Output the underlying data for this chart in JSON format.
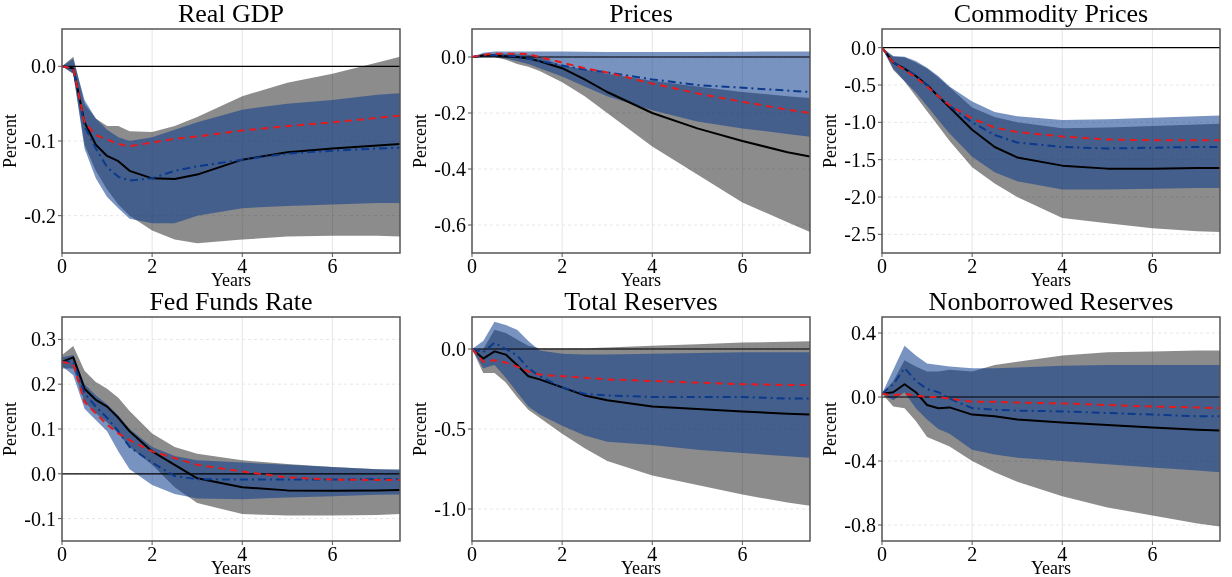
{
  "chart_data": [
    {
      "type": "line",
      "title": "Real GDP",
      "xlabel": "Years",
      "ylabel": "Percent",
      "x": [
        0,
        0.25,
        0.5,
        0.75,
        1,
        1.25,
        1.5,
        2,
        2.5,
        3,
        4,
        5,
        6,
        7,
        7.5
      ],
      "xlim": [
        0,
        7.5
      ],
      "xticks": [
        0,
        2,
        4,
        6
      ],
      "ylim": [
        -0.25,
        0.05
      ],
      "yticks": [
        {
          "value": -0.2,
          "label": "-0.2"
        },
        {
          "value": -0.1,
          "label": "-0.1"
        },
        {
          "value": 0,
          "label": "0.0"
        }
      ],
      "grid": true,
      "ref_lines": [
        {
          "axis": "y",
          "value": 0,
          "color": "#000000"
        }
      ],
      "series": [
        {
          "color": "#000000",
          "line_style": "solid",
          "values": [
            0,
            -0.003,
            -0.075,
            -0.105,
            -0.12,
            -0.127,
            -0.14,
            -0.15,
            -0.151,
            -0.145,
            -0.125,
            -0.115,
            -0.11,
            -0.106,
            -0.104
          ],
          "lower": [
            0,
            -0.01,
            -0.105,
            -0.14,
            -0.165,
            -0.185,
            -0.2,
            -0.22,
            -0.232,
            -0.237,
            -0.232,
            -0.228,
            -0.227,
            -0.227,
            -0.228
          ],
          "upper": [
            0,
            0.013,
            -0.05,
            -0.07,
            -0.08,
            -0.08,
            -0.087,
            -0.088,
            -0.08,
            -0.068,
            -0.04,
            -0.022,
            -0.01,
            0.005,
            0.013
          ]
        },
        {
          "color": "#0b3a8c",
          "line_style": "dashdot",
          "values": [
            0,
            -0.003,
            -0.08,
            -0.11,
            -0.135,
            -0.148,
            -0.153,
            -0.15,
            -0.14,
            -0.134,
            -0.125,
            -0.117,
            -0.113,
            -0.11,
            -0.109
          ],
          "lower": [
            0,
            -0.01,
            -0.11,
            -0.15,
            -0.175,
            -0.19,
            -0.204,
            -0.21,
            -0.21,
            -0.2,
            -0.19,
            -0.187,
            -0.185,
            -0.183,
            -0.183
          ],
          "upper": [
            0,
            0.01,
            -0.045,
            -0.07,
            -0.085,
            -0.095,
            -0.1,
            -0.095,
            -0.085,
            -0.075,
            -0.058,
            -0.05,
            -0.045,
            -0.038,
            -0.036
          ]
        },
        {
          "color": "#e41a1c",
          "line_style": "dashed",
          "values": [
            0,
            -0.003,
            -0.075,
            -0.092,
            -0.098,
            -0.104,
            -0.107,
            -0.102,
            -0.097,
            -0.094,
            -0.086,
            -0.08,
            -0.075,
            -0.069,
            -0.066
          ]
        }
      ]
    },
    {
      "type": "line",
      "title": "Prices",
      "xlabel": "Years",
      "ylabel": "Percent",
      "x": [
        0,
        0.25,
        0.5,
        0.75,
        1,
        1.25,
        1.5,
        2,
        2.5,
        3,
        4,
        5,
        6,
        7,
        7.5
      ],
      "xlim": [
        0,
        7.5
      ],
      "xticks": [
        0,
        2,
        4,
        6
      ],
      "ylim": [
        -0.7,
        0.1
      ],
      "yticks": [
        {
          "value": -0.6,
          "label": "-0.6"
        },
        {
          "value": -0.4,
          "label": "-0.4"
        },
        {
          "value": -0.2,
          "label": "-0.2"
        },
        {
          "value": 0,
          "label": "0.0"
        }
      ],
      "grid": true,
      "ref_lines": [
        {
          "axis": "y",
          "value": 0,
          "color": "#000000"
        }
      ],
      "series": [
        {
          "color": "#000000",
          "line_style": "solid",
          "values": [
            0,
            0.005,
            0.005,
            0.003,
            0,
            -0.005,
            -0.015,
            -0.04,
            -0.08,
            -0.125,
            -0.2,
            -0.255,
            -0.3,
            -0.34,
            -0.355
          ],
          "lower": [
            0,
            0,
            0,
            -0.01,
            -0.025,
            -0.035,
            -0.05,
            -0.09,
            -0.14,
            -0.2,
            -0.32,
            -0.42,
            -0.52,
            -0.59,
            -0.625
          ],
          "upper": [
            0,
            0.01,
            0.012,
            0.012,
            0.01,
            0.008,
            0,
            -0.03,
            -0.045,
            -0.06,
            -0.085,
            -0.105,
            -0.125,
            -0.14,
            -0.146
          ]
        },
        {
          "color": "#0b3a8c",
          "line_style": "dashdot",
          "values": [
            0,
            0.005,
            0.007,
            0.005,
            0.002,
            -0.005,
            -0.015,
            -0.03,
            -0.045,
            -0.055,
            -0.08,
            -0.1,
            -0.11,
            -0.12,
            -0.125
          ],
          "lower": [
            0,
            0,
            0,
            -0.005,
            -0.015,
            -0.025,
            -0.04,
            -0.07,
            -0.105,
            -0.14,
            -0.19,
            -0.23,
            -0.255,
            -0.275,
            -0.285
          ],
          "upper": [
            0,
            0.015,
            0.02,
            0.02,
            0.02,
            0.02,
            0.02,
            0.02,
            0.019,
            0.018,
            0.018,
            0.018,
            0.019,
            0.02,
            0.02
          ]
        },
        {
          "color": "#e41a1c",
          "line_style": "dashed",
          "values": [
            0,
            0.008,
            0.012,
            0.012,
            0.012,
            0.01,
            0,
            -0.02,
            -0.04,
            -0.055,
            -0.095,
            -0.13,
            -0.16,
            -0.188,
            -0.2
          ]
        }
      ]
    },
    {
      "type": "line",
      "title": "Commodity Prices",
      "xlabel": "Years",
      "ylabel": "Percent",
      "x": [
        0,
        0.25,
        0.5,
        0.75,
        1,
        1.25,
        1.5,
        2,
        2.5,
        3,
        4,
        5,
        6,
        7,
        7.5
      ],
      "xlim": [
        0,
        7.5
      ],
      "xticks": [
        0,
        2,
        4,
        6
      ],
      "ylim": [
        -2.75,
        0.25
      ],
      "yticks": [
        {
          "value": -2.5,
          "label": "-2.5"
        },
        {
          "value": -2,
          "label": "-2.0"
        },
        {
          "value": -1.5,
          "label": "-1.5"
        },
        {
          "value": -1,
          "label": "-1.0"
        },
        {
          "value": -0.5,
          "label": "-0.5"
        },
        {
          "value": 0,
          "label": "0.0"
        }
      ],
      "grid": true,
      "ref_lines": [
        {
          "axis": "y",
          "value": 0,
          "color": "#000000"
        }
      ],
      "series": [
        {
          "color": "#000000",
          "line_style": "solid",
          "values": [
            0,
            -0.2,
            -0.28,
            -0.38,
            -0.5,
            -0.65,
            -0.8,
            -1.1,
            -1.33,
            -1.47,
            -1.58,
            -1.62,
            -1.62,
            -1.61,
            -1.61
          ],
          "lower": [
            0,
            -0.3,
            -0.45,
            -0.65,
            -0.85,
            -1.05,
            -1.25,
            -1.6,
            -1.82,
            -2,
            -2.28,
            -2.35,
            -2.42,
            -2.46,
            -2.47
          ],
          "upper": [
            0,
            -0.12,
            -0.13,
            -0.2,
            -0.28,
            -0.4,
            -0.53,
            -0.8,
            -0.93,
            -1,
            -1.08,
            -1.07,
            -1.05,
            -1.03,
            -1.02
          ]
        },
        {
          "color": "#0b3a8c",
          "line_style": "dashdot",
          "values": [
            0,
            -0.2,
            -0.28,
            -0.37,
            -0.5,
            -0.65,
            -0.78,
            -1,
            -1.17,
            -1.27,
            -1.33,
            -1.35,
            -1.34,
            -1.33,
            -1.33
          ],
          "lower": [
            0,
            -0.28,
            -0.45,
            -0.6,
            -0.78,
            -0.97,
            -1.15,
            -1.46,
            -1.67,
            -1.79,
            -1.9,
            -1.9,
            -1.89,
            -1.88,
            -1.88
          ],
          "upper": [
            0,
            -0.11,
            -0.12,
            -0.18,
            -0.27,
            -0.38,
            -0.52,
            -0.72,
            -0.86,
            -0.92,
            -0.97,
            -0.96,
            -0.94,
            -0.92,
            -0.91
          ]
        },
        {
          "color": "#e41a1c",
          "line_style": "dashed",
          "values": [
            0,
            -0.2,
            -0.3,
            -0.4,
            -0.52,
            -0.65,
            -0.77,
            -0.95,
            -1.07,
            -1.13,
            -1.19,
            -1.23,
            -1.24,
            -1.24,
            -1.24
          ]
        }
      ]
    },
    {
      "type": "line",
      "title": "Fed Funds Rate",
      "xlabel": "Years",
      "ylabel": "Percent",
      "x": [
        0,
        0.25,
        0.5,
        0.75,
        1,
        1.25,
        1.5,
        2,
        2.5,
        3,
        4,
        5,
        6,
        7,
        7.5
      ],
      "xlim": [
        0,
        7.5
      ],
      "xticks": [
        0,
        2,
        4,
        6
      ],
      "ylim": [
        -0.15,
        0.35
      ],
      "yticks": [
        {
          "value": -0.1,
          "label": "-0.1"
        },
        {
          "value": 0,
          "label": "0.0"
        },
        {
          "value": 0.1,
          "label": "0.1"
        },
        {
          "value": 0.2,
          "label": "0.2"
        },
        {
          "value": 0.3,
          "label": "0.3"
        }
      ],
      "grid": true,
      "ref_lines": [
        {
          "axis": "y",
          "value": 0,
          "color": "#000000"
        }
      ],
      "series": [
        {
          "color": "#000000",
          "line_style": "solid",
          "values": [
            0.25,
            0.26,
            0.19,
            0.165,
            0.15,
            0.125,
            0.095,
            0.05,
            0.02,
            -0.01,
            -0.03,
            -0.037,
            -0.038,
            -0.037,
            -0.036
          ],
          "lower": [
            0.235,
            0.235,
            0.16,
            0.135,
            0.115,
            0.09,
            0.06,
            0.02,
            -0.03,
            -0.065,
            -0.09,
            -0.093,
            -0.093,
            -0.092,
            -0.09
          ],
          "upper": [
            0.265,
            0.285,
            0.23,
            0.205,
            0.19,
            0.17,
            0.14,
            0.09,
            0.06,
            0.045,
            0.03,
            0.022,
            0.015,
            0.01,
            0.008
          ]
        },
        {
          "color": "#0b3a8c",
          "line_style": "dashdot",
          "values": [
            0.25,
            0.25,
            0.18,
            0.15,
            0.125,
            0.095,
            0.06,
            0.025,
            -0.005,
            -0.012,
            -0.013,
            -0.013,
            -0.013,
            -0.012,
            -0.012
          ],
          "lower": [
            0.24,
            0.22,
            0.145,
            0.12,
            0.095,
            0.05,
            0.01,
            -0.025,
            -0.045,
            -0.055,
            -0.057,
            -0.053,
            -0.05,
            -0.047,
            -0.046
          ],
          "upper": [
            0.26,
            0.265,
            0.2,
            0.175,
            0.155,
            0.13,
            0.1,
            0.06,
            0.04,
            0.03,
            0.025,
            0.02,
            0.015,
            0.01,
            0.01
          ]
        },
        {
          "color": "#e41a1c",
          "line_style": "dashed",
          "values": [
            0.25,
            0.245,
            0.16,
            0.135,
            0.11,
            0.09,
            0.075,
            0.05,
            0.035,
            0.02,
            0.005,
            -0.008,
            -0.013,
            -0.014,
            -0.014
          ]
        }
      ]
    },
    {
      "type": "line",
      "title": "Total Reserves",
      "xlabel": "Years",
      "ylabel": "Percent",
      "x": [
        0,
        0.25,
        0.5,
        0.75,
        1,
        1.25,
        1.5,
        2,
        2.5,
        3,
        4,
        5,
        6,
        7,
        7.5
      ],
      "xlim": [
        0,
        7.5
      ],
      "xticks": [
        0,
        2,
        4,
        6
      ],
      "ylim": [
        -1.2,
        0.2
      ],
      "yticks": [
        {
          "value": -1,
          "label": "-1.0"
        },
        {
          "value": -0.5,
          "label": "-0.5"
        },
        {
          "value": 0,
          "label": "0.0"
        }
      ],
      "grid": true,
      "ref_lines": [
        {
          "axis": "y",
          "value": 0,
          "color": "#000000"
        }
      ],
      "series": [
        {
          "color": "#000000",
          "line_style": "solid",
          "values": [
            0,
            -0.06,
            -0.015,
            -0.035,
            -0.1,
            -0.17,
            -0.19,
            -0.24,
            -0.29,
            -0.32,
            -0.36,
            -0.375,
            -0.39,
            -0.405,
            -0.41
          ],
          "lower": [
            0,
            -0.15,
            -0.15,
            -0.21,
            -0.3,
            -0.38,
            -0.43,
            -0.53,
            -0.62,
            -0.7,
            -0.79,
            -0.85,
            -0.91,
            -0.96,
            -0.98
          ],
          "upper": [
            0,
            0,
            0.12,
            0.1,
            0.06,
            0.02,
            0.005,
            0.005,
            0.005,
            0.01,
            0.02,
            0.03,
            0.04,
            0.045,
            0.048
          ]
        },
        {
          "color": "#0b3a8c",
          "line_style": "dashdot",
          "values": [
            0,
            -0.02,
            0.04,
            0,
            -0.04,
            -0.12,
            -0.17,
            -0.24,
            -0.28,
            -0.29,
            -0.3,
            -0.3,
            -0.3,
            -0.31,
            -0.31
          ],
          "lower": [
            0,
            -0.12,
            -0.1,
            -0.18,
            -0.27,
            -0.36,
            -0.41,
            -0.48,
            -0.54,
            -0.58,
            -0.6,
            -0.63,
            -0.65,
            -0.67,
            -0.68
          ],
          "upper": [
            0,
            0.05,
            0.17,
            0.15,
            0.12,
            0.05,
            -0.01,
            -0.03,
            -0.035,
            -0.035,
            -0.03,
            -0.025,
            -0.02,
            -0.02,
            -0.02
          ]
        },
        {
          "color": "#e41a1c",
          "line_style": "dashed",
          "values": [
            0,
            -0.08,
            -0.07,
            -0.085,
            -0.11,
            -0.14,
            -0.16,
            -0.17,
            -0.18,
            -0.19,
            -0.2,
            -0.21,
            -0.22,
            -0.225,
            -0.225
          ]
        }
      ]
    },
    {
      "type": "line",
      "title": "Nonborrowed Reserves",
      "xlabel": "Years",
      "ylabel": "Percent",
      "x": [
        0,
        0.25,
        0.5,
        0.75,
        1,
        1.25,
        1.5,
        2,
        2.5,
        3,
        4,
        5,
        6,
        7,
        7.5
      ],
      "xlim": [
        0,
        7.5
      ],
      "xticks": [
        0,
        2,
        4,
        6
      ],
      "ylim": [
        -0.9,
        0.5
      ],
      "yticks": [
        {
          "value": -0.8,
          "label": "-0.8"
        },
        {
          "value": -0.4,
          "label": "-0.4"
        },
        {
          "value": 0,
          "label": "0.0"
        },
        {
          "value": 0.4,
          "label": "0.4"
        }
      ],
      "grid": true,
      "ref_lines": [
        {
          "axis": "y",
          "value": 0,
          "color": "#000000"
        }
      ],
      "series": [
        {
          "color": "#000000",
          "line_style": "solid",
          "values": [
            0.02,
            0.03,
            0.08,
            0.03,
            -0.05,
            -0.07,
            -0.065,
            -0.11,
            -0.12,
            -0.14,
            -0.16,
            -0.175,
            -0.19,
            -0.205,
            -0.21
          ],
          "lower": [
            0.02,
            -0.06,
            -0.07,
            -0.15,
            -0.25,
            -0.28,
            -0.31,
            -0.4,
            -0.47,
            -0.53,
            -0.62,
            -0.69,
            -0.74,
            -0.79,
            -0.81
          ],
          "upper": [
            0.02,
            0.1,
            0.23,
            0.19,
            0.16,
            0.16,
            0.17,
            0.16,
            0.2,
            0.22,
            0.26,
            0.28,
            0.285,
            0.29,
            0.29
          ]
        },
        {
          "color": "#0b3a8c",
          "line_style": "dashdot",
          "values": [
            0.02,
            0.08,
            0.18,
            0.1,
            0.05,
            0.03,
            -0.01,
            -0.07,
            -0.08,
            -0.085,
            -0.09,
            -0.1,
            -0.11,
            -0.12,
            -0.12
          ],
          "lower": [
            0.02,
            -0.02,
            0.03,
            -0.07,
            -0.14,
            -0.2,
            -0.23,
            -0.33,
            -0.36,
            -0.38,
            -0.4,
            -0.42,
            -0.44,
            -0.46,
            -0.47
          ],
          "upper": [
            0.02,
            0.17,
            0.32,
            0.26,
            0.21,
            0.2,
            0.19,
            0.18,
            0.18,
            0.185,
            0.195,
            0.2,
            0.2,
            0.2,
            0.2
          ]
        },
        {
          "color": "#e41a1c",
          "line_style": "dashed",
          "values": [
            0.02,
            0.01,
            0.02,
            0.01,
            0,
            0,
            -0.01,
            -0.03,
            -0.03,
            -0.035,
            -0.04,
            -0.05,
            -0.06,
            -0.065,
            -0.07
          ]
        }
      ]
    }
  ]
}
